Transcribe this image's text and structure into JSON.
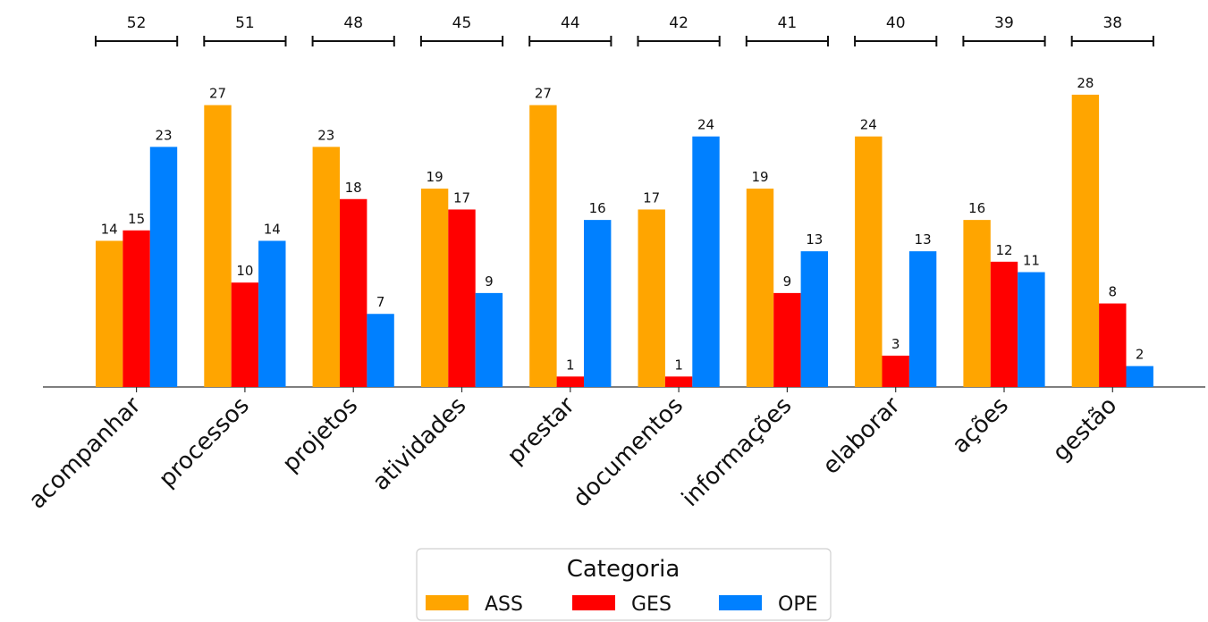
{
  "chart_data": {
    "type": "bar",
    "categories": [
      "acompanhar",
      "processos",
      "projetos",
      "atividades",
      "prestar",
      "documentos",
      "informações",
      "elaborar",
      "ações",
      "gestão"
    ],
    "totals": [
      52,
      51,
      48,
      45,
      44,
      42,
      41,
      40,
      39,
      38
    ],
    "series": [
      {
        "name": "ASS",
        "color": "#FFA500",
        "values": [
          14,
          27,
          23,
          19,
          27,
          17,
          19,
          24,
          16,
          28
        ]
      },
      {
        "name": "GES",
        "color": "#FF0000",
        "values": [
          15,
          10,
          18,
          17,
          1,
          1,
          9,
          3,
          12,
          8
        ]
      },
      {
        "name": "OPE",
        "color": "#0080FF",
        "values": [
          23,
          14,
          7,
          9,
          16,
          24,
          13,
          13,
          11,
          2
        ]
      }
    ],
    "legend": {
      "title": "Categoria",
      "placement": "bottom-center"
    },
    "ylim": [
      0,
      28
    ],
    "grid": false
  }
}
